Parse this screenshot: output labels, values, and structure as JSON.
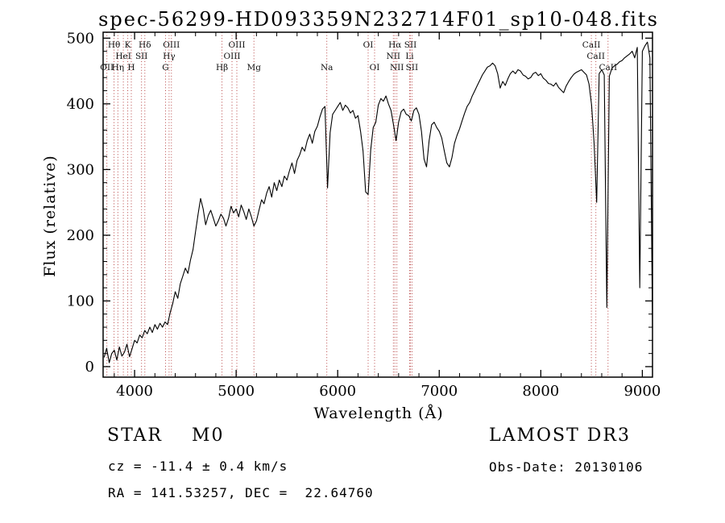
{
  "chart_data": {
    "type": "line",
    "title": "spec-56299-HD093359N232714F01_sp10-048.fits",
    "xlabel": "Wavelength (Å)",
    "ylabel": "Flux (relative)",
    "xlim": [
      3690,
      9100
    ],
    "ylim": [
      -16,
      509
    ],
    "x_ticks": [
      4000,
      5000,
      6000,
      7000,
      8000,
      9000
    ],
    "y_ticks": [
      0,
      100,
      200,
      300,
      400,
      500
    ],
    "x_minor_step": 200,
    "y_minor_step": 20,
    "grid": false,
    "legend": "none",
    "line_color": "#000000",
    "marker_color": "#b03030",
    "marker_label_color": "#111111",
    "spectrum": {
      "x_start": 3700,
      "x_step": 25,
      "flux": [
        14,
        28,
        6,
        20,
        25,
        10,
        30,
        16,
        22,
        34,
        15,
        27,
        40,
        36,
        48,
        44,
        55,
        50,
        60,
        52,
        64,
        57,
        66,
        60,
        68,
        64,
        82,
        96,
        114,
        104,
        126,
        138,
        150,
        142,
        162,
        178,
        205,
        232,
        256,
        240,
        216,
        230,
        238,
        226,
        214,
        222,
        232,
        226,
        214,
        226,
        244,
        234,
        240,
        228,
        246,
        236,
        224,
        240,
        228,
        214,
        222,
        238,
        254,
        248,
        264,
        274,
        258,
        280,
        268,
        284,
        274,
        290,
        284,
        298,
        310,
        294,
        314,
        322,
        334,
        328,
        344,
        354,
        340,
        358,
        366,
        380,
        392,
        396,
        272,
        356,
        384,
        390,
        396,
        402,
        390,
        398,
        394,
        386,
        390,
        378,
        382,
        358,
        328,
        266,
        262,
        330,
        364,
        372,
        398,
        408,
        404,
        412,
        400,
        390,
        368,
        344,
        372,
        388,
        392,
        384,
        382,
        374,
        390,
        394,
        384,
        358,
        316,
        304,
        344,
        368,
        372,
        364,
        358,
        348,
        328,
        310,
        304,
        318,
        340,
        352,
        362,
        374,
        386,
        396,
        402,
        412,
        420,
        428,
        436,
        444,
        450,
        456,
        458,
        462,
        458,
        446,
        424,
        434,
        428,
        438,
        446,
        450,
        446,
        452,
        450,
        444,
        442,
        438,
        440,
        446,
        448,
        443,
        446,
        439,
        436,
        431,
        430,
        427,
        432,
        425,
        421,
        417,
        427,
        434,
        440,
        445,
        448,
        450,
        452,
        448,
        444,
        430,
        398,
        340,
        250,
        446,
        452,
        444,
        90,
        442,
        454,
        458,
        460,
        464,
        466,
        470,
        473,
        476,
        480,
        470,
        486,
        120,
        480,
        488,
        494,
        470,
        60
      ]
    },
    "spectral_lines": [
      {
        "label": "OII",
        "wavelength": 3727,
        "row": 3
      },
      {
        "label": "Hθ",
        "wavelength": 3798,
        "row": 1
      },
      {
        "label": "Hη",
        "wavelength": 3835,
        "row": 3
      },
      {
        "label": "HeI",
        "wavelength": 3889,
        "row": 2
      },
      {
        "label": "K",
        "wavelength": 3933,
        "row": 1
      },
      {
        "label": "H",
        "wavelength": 3968,
        "row": 3
      },
      {
        "label": "SII",
        "wavelength": 4068,
        "row": 2
      },
      {
        "label": "Hδ",
        "wavelength": 4101,
        "row": 1
      },
      {
        "label": "G",
        "wavelength": 4305,
        "row": 3
      },
      {
        "label": "Hγ",
        "wavelength": 4340,
        "row": 2
      },
      {
        "label": "OIII",
        "wavelength": 4363,
        "row": 1
      },
      {
        "label": "Hβ",
        "wavelength": 4861,
        "row": 3
      },
      {
        "label": "OIII",
        "wavelength": 4959,
        "row": 2
      },
      {
        "label": "OIII",
        "wavelength": 5007,
        "row": 1
      },
      {
        "label": "Mg",
        "wavelength": 5175,
        "row": 3
      },
      {
        "label": "Na",
        "wavelength": 5893,
        "row": 3
      },
      {
        "label": "OI",
        "wavelength": 6300,
        "row": 1
      },
      {
        "label": "OI",
        "wavelength": 6363,
        "row": 3
      },
      {
        "label": "NII",
        "wavelength": 6548,
        "row": 2
      },
      {
        "label": "Hα",
        "wavelength": 6563,
        "row": 1
      },
      {
        "label": "NII",
        "wavelength": 6583,
        "row": 3
      },
      {
        "label": "Li",
        "wavelength": 6708,
        "row": 2
      },
      {
        "label": "SII",
        "wavelength": 6716,
        "row": 1
      },
      {
        "label": "SII",
        "wavelength": 6731,
        "row": 3
      },
      {
        "label": "CaII",
        "wavelength": 8498,
        "row": 1
      },
      {
        "label": "CaII",
        "wavelength": 8542,
        "row": 2
      },
      {
        "label": "CaII",
        "wavelength": 8662,
        "row": 3
      }
    ]
  },
  "annotations": {
    "object_class": "STAR    M0",
    "cz": "cz = -11.4 ± 0.4 km/s",
    "radec": "RA = 141.53257, DEC =  22.64760",
    "survey": "LAMOST DR3",
    "obs_date": "Obs-Date: 20130106"
  }
}
